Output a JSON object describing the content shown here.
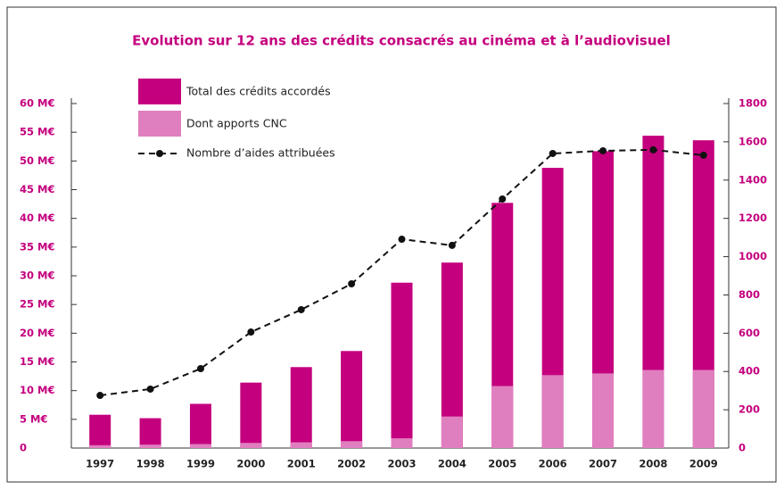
{
  "chart_data": {
    "type": "bar",
    "title": "Evolution sur 12 ans des crédits consacrés au cinéma et à l’audiovisuel",
    "categories": [
      "1997",
      "1998",
      "1999",
      "2000",
      "2001",
      "2002",
      "2003",
      "2004",
      "2005",
      "2006",
      "2007",
      "2008",
      "2009"
    ],
    "series": [
      {
        "name": "Total des crédits accordés",
        "type": "bar",
        "color": "#c4007e",
        "values": [
          5.8,
          5.2,
          7.7,
          11.4,
          14.1,
          16.9,
          28.8,
          32.3,
          42.7,
          48.8,
          51.7,
          54.4,
          53.6
        ]
      },
      {
        "name": "Dont apports CNC",
        "type": "bar",
        "color": "#e07fbf",
        "values": [
          0.5,
          0.6,
          0.7,
          0.9,
          1.0,
          1.2,
          1.7,
          5.5,
          10.8,
          12.7,
          13.0,
          13.6,
          13.6
        ]
      },
      {
        "name": "Nombre d’aides attribuées",
        "type": "line",
        "axis": "y2",
        "color": "#111",
        "dashed": true,
        "values": [
          275,
          308,
          415,
          606,
          723,
          858,
          1091,
          1059,
          1301,
          1539,
          1553,
          1558,
          1530
        ]
      }
    ],
    "ylim": [
      0,
      60
    ],
    "yticks": [
      0,
      {
        "value": 5,
        "label": "5 M€"
      },
      {
        "value": 10,
        "label": "10 M€"
      },
      {
        "value": 15,
        "label": "15 M€"
      },
      {
        "value": 20,
        "label": "20 M€"
      },
      {
        "value": 25,
        "label": "25 M€"
      },
      {
        "value": 30,
        "label": "30 M€"
      },
      {
        "value": 35,
        "label": "35 M€"
      },
      {
        "value": 40,
        "label": "40 M€"
      },
      {
        "value": 45,
        "label": "45 M€"
      },
      {
        "value": 50,
        "label": "50 M€"
      },
      {
        "value": 55,
        "label": "55 M€"
      },
      {
        "value": 60,
        "label": "60 M€"
      }
    ],
    "y2lim": [
      0,
      1800
    ],
    "y2ticks": [
      0,
      200,
      400,
      600,
      800,
      1000,
      1200,
      1400,
      1600,
      1800
    ],
    "grid": false,
    "legend": "top-left"
  }
}
